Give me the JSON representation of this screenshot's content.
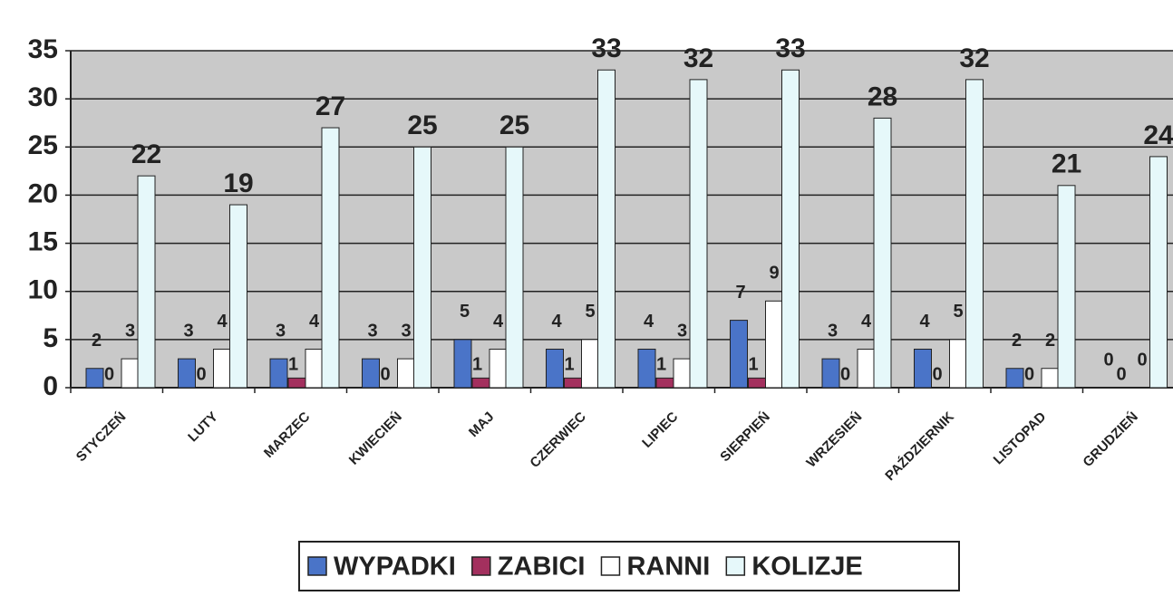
{
  "chart_data": {
    "type": "bar",
    "categories": [
      "STYCZEŃ",
      "LUTY",
      "MARZEC",
      "KWIECIEŃ",
      "MAJ",
      "CZERWIEC",
      "LIPIEC",
      "SIERPIEŃ",
      "WRZESIEŃ",
      "PAŹDZIERNIK",
      "LISTOPAD",
      "GRUDZIEŃ"
    ],
    "series": [
      {
        "name": "WYPADKI",
        "color": "#4a74c8",
        "values": [
          2,
          3,
          3,
          3,
          5,
          4,
          4,
          7,
          3,
          4,
          2,
          0
        ]
      },
      {
        "name": "ZABICI",
        "color": "#a3305e",
        "values": [
          0,
          0,
          1,
          0,
          1,
          1,
          1,
          1,
          0,
          0,
          0,
          0
        ]
      },
      {
        "name": "RANNI",
        "color": "#ffffff",
        "values": [
          3,
          4,
          4,
          3,
          4,
          5,
          3,
          9,
          4,
          5,
          2,
          0
        ]
      },
      {
        "name": "KOLIZJE",
        "color": "#e6f8fa",
        "values": [
          22,
          19,
          27,
          25,
          25,
          33,
          32,
          33,
          28,
          32,
          21,
          24
        ]
      }
    ],
    "ylim": [
      0,
      35
    ],
    "yticks": [
      0,
      5,
      10,
      15,
      20,
      25,
      30,
      35
    ],
    "grid": true
  }
}
